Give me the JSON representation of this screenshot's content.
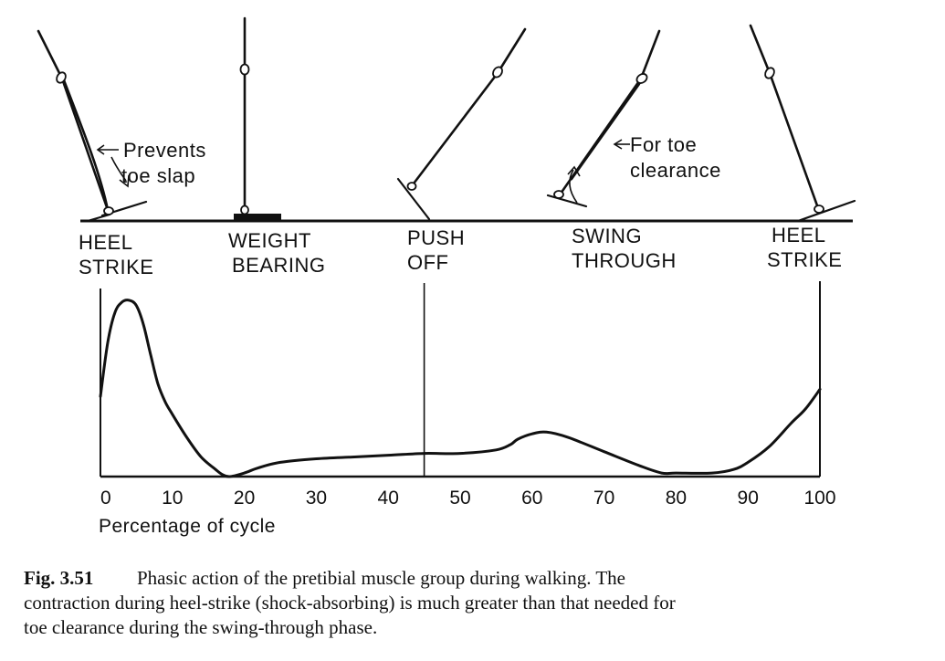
{
  "phases": [
    {
      "line1": "HEEL",
      "line2": "STRIKE"
    },
    {
      "line1": "WEIGHT",
      "line2": "BEARING"
    },
    {
      "line1": "PUSH",
      "line2": "OFF"
    },
    {
      "line1": "SWING",
      "line2": "THROUGH"
    },
    {
      "line1": "HEEL",
      "line2": "STRIKE"
    }
  ],
  "annotations": {
    "prevents": {
      "line1": "Prevents",
      "line2": "toe slap"
    },
    "clearance": {
      "line1": "For toe",
      "line2": "clearance"
    }
  },
  "chart_data": {
    "type": "line",
    "xlabel": "Percentage of cycle",
    "ylabel": "",
    "title": "",
    "xlim": [
      0,
      100
    ],
    "ylim": [
      0,
      100
    ],
    "xticks": [
      0,
      10,
      20,
      30,
      40,
      50,
      60,
      70,
      80,
      90,
      100
    ],
    "reference_line_x": 45,
    "series": [
      {
        "x": [
          0,
          1,
          2,
          3,
          4,
          5,
          6,
          7,
          8,
          9,
          10,
          12,
          14,
          16,
          17,
          18,
          20,
          22,
          25,
          30,
          35,
          40,
          45,
          50,
          55,
          57,
          58,
          60,
          62,
          65,
          70,
          75,
          78,
          80,
          85,
          88,
          90,
          93,
          96,
          98,
          100
        ],
        "values": [
          45,
          75,
          92,
          98,
          99,
          96,
          85,
          68,
          52,
          42,
          35,
          22,
          11,
          4,
          1,
          0,
          2,
          5,
          8,
          10,
          11,
          12,
          13,
          13,
          15,
          18,
          21,
          24,
          25,
          22,
          14,
          6,
          2,
          2,
          2,
          4,
          8,
          17,
          30,
          38,
          49
        ]
      }
    ]
  },
  "caption": {
    "label": "Fig. 3.51",
    "lines": [
      "Phasic action of the pretibial muscle group during walking. The",
      "contraction during heel-strike (shock-absorbing) is much greater than that needed for",
      "toe clearance during the swing-through phase."
    ]
  }
}
